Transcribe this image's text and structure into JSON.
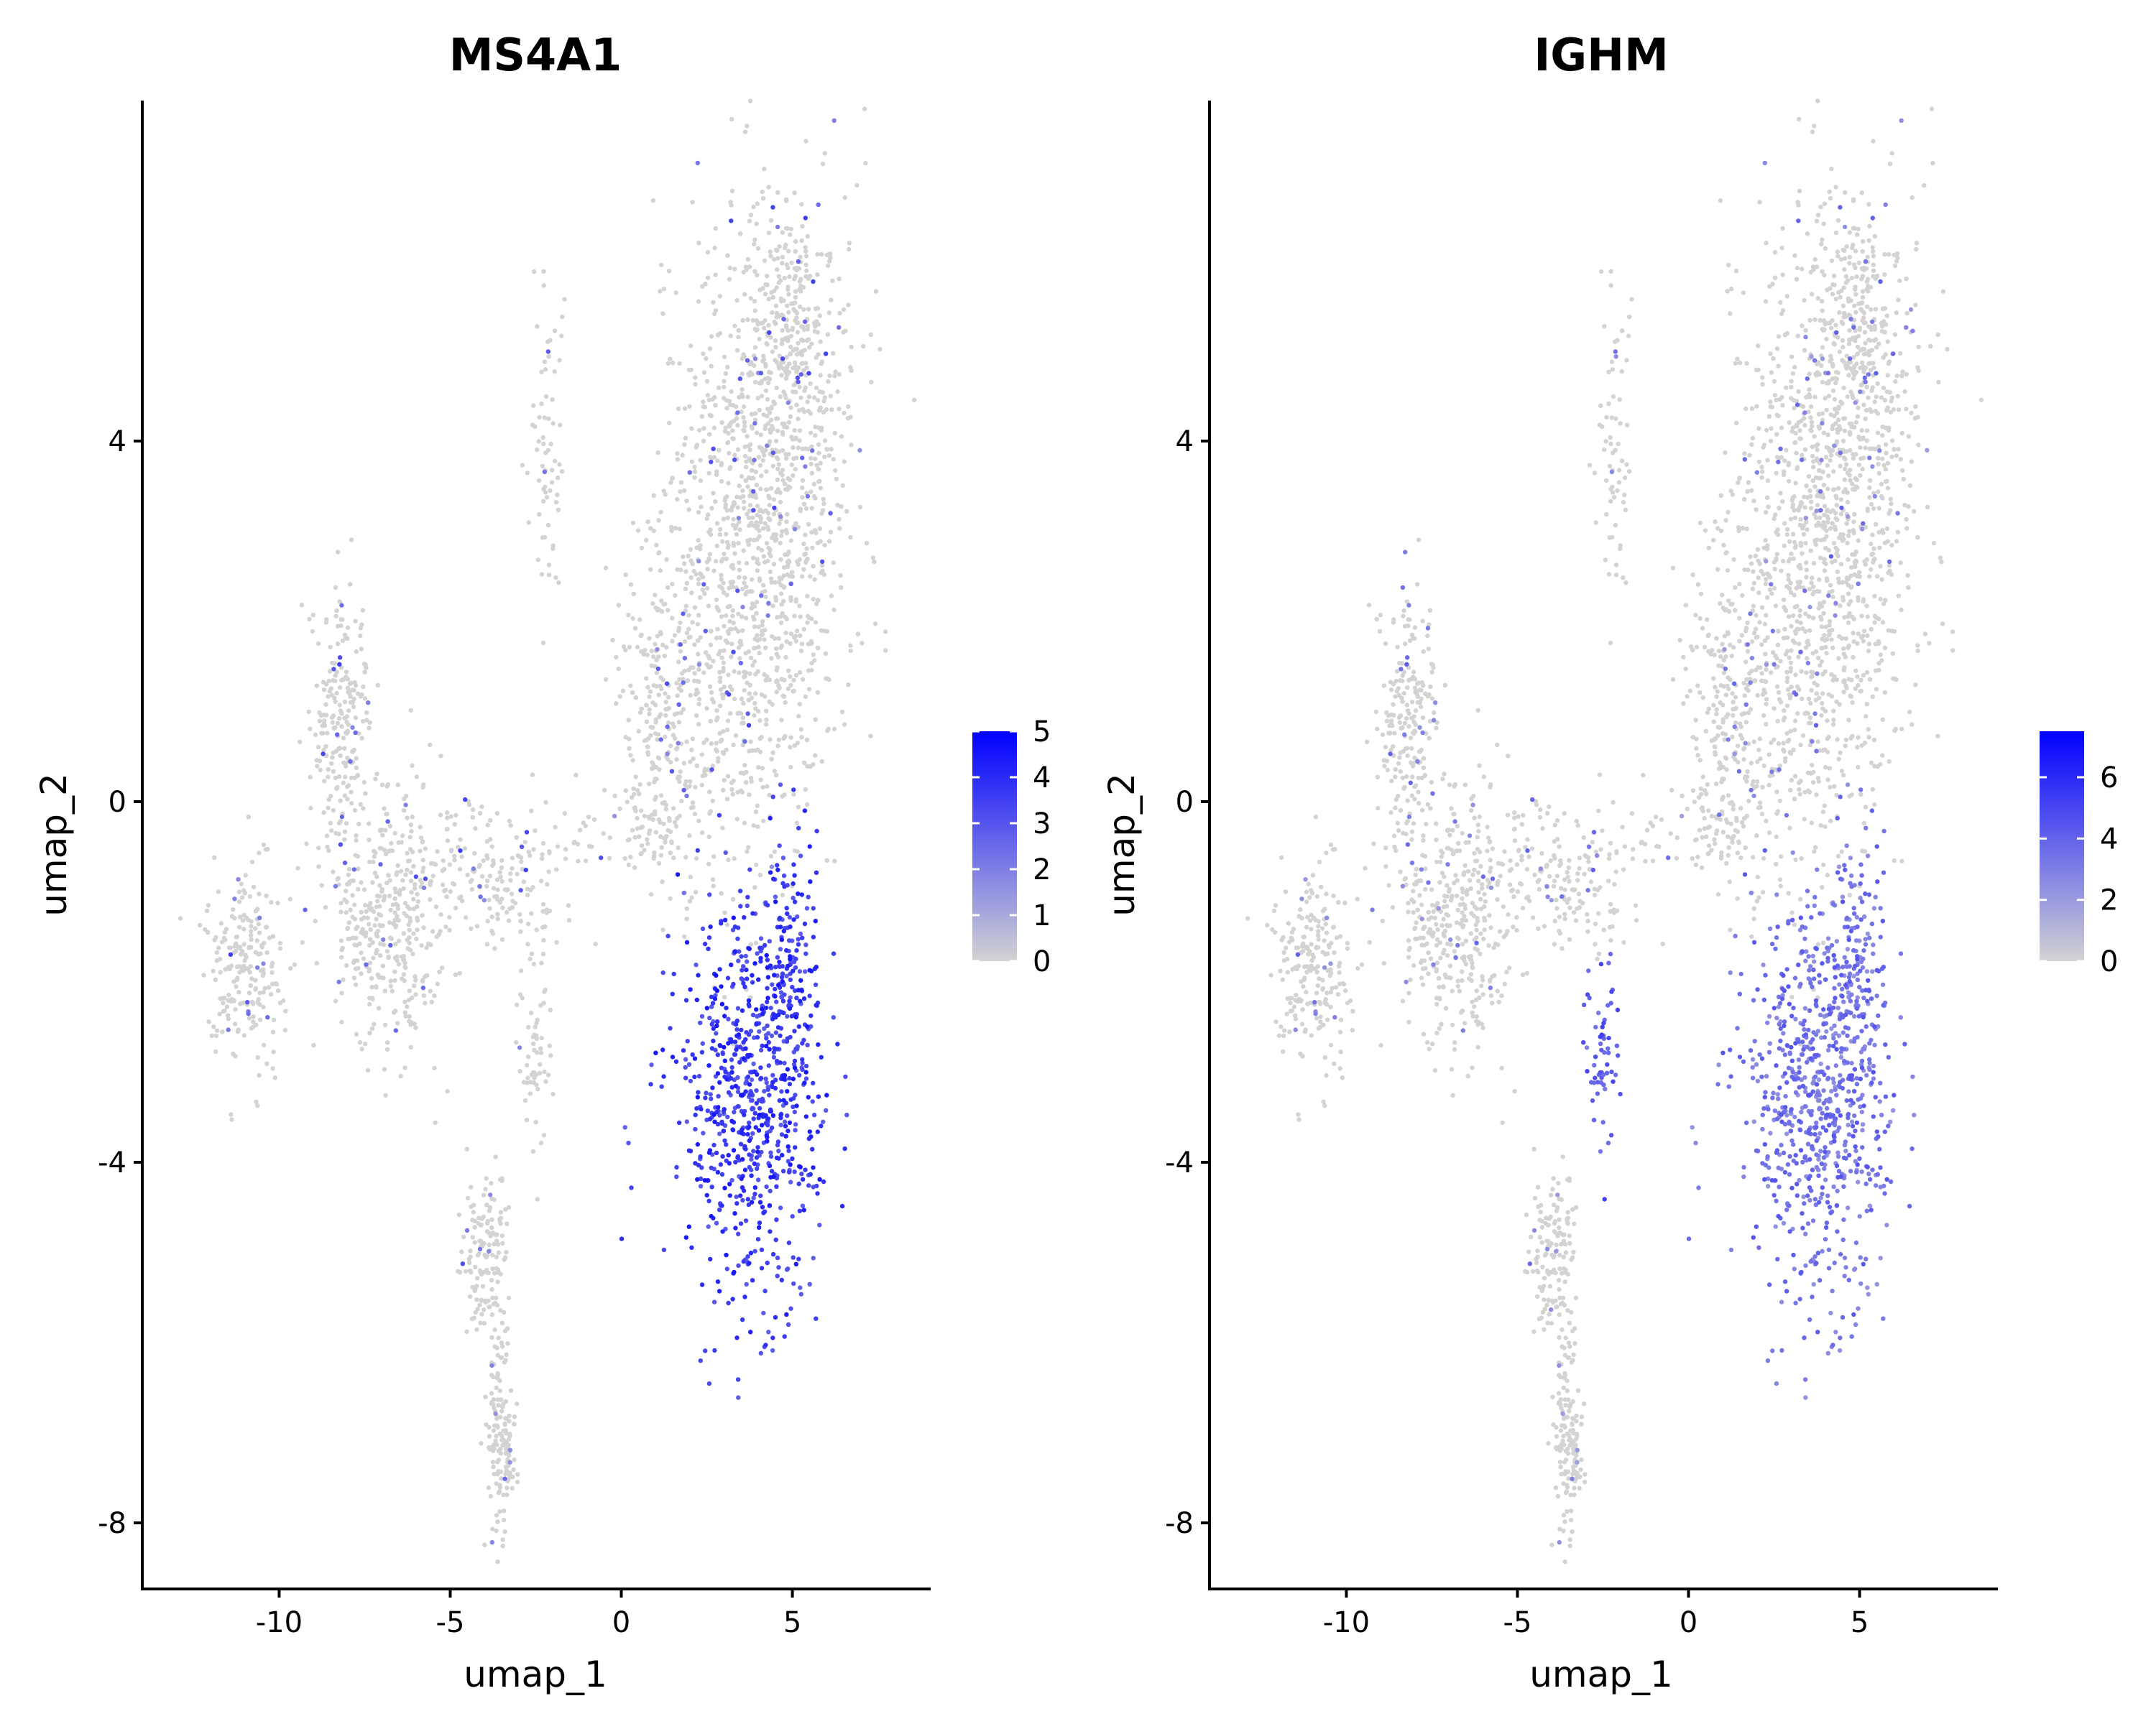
{
  "chart_data": [
    {
      "type": "scatter",
      "title": "MS4A1",
      "xlabel": "umap_1",
      "ylabel": "umap_2",
      "xlim": [
        -14,
        9
      ],
      "ylim": [
        -8.8,
        7.8
      ],
      "x_ticks": [
        "-10",
        "-5",
        "0",
        "5"
      ],
      "y_ticks": [
        "4",
        "0",
        "-4",
        "-8"
      ],
      "legend_position": "right",
      "colorbar": {
        "min": 0,
        "max": 5,
        "ticks": [
          "5",
          "4",
          "3",
          "2",
          "1",
          "0"
        ]
      },
      "colors": {
        "low": "#d3d3d3",
        "high": "#0000ff"
      },
      "expression_by_region": [
        {
          "region": "B cell cluster (x 1.5 to 6, y -5 to -0.5)",
          "expression": "high"
        },
        {
          "region": "remaining cells",
          "expression": "mostly 0, sparse low values"
        }
      ]
    },
    {
      "type": "scatter",
      "title": "IGHM",
      "xlabel": "umap_1",
      "ylabel": "umap_2",
      "xlim": [
        -14,
        9
      ],
      "ylim": [
        -8.8,
        7.8
      ],
      "x_ticks": [
        "-10",
        "-5",
        "0",
        "5"
      ],
      "y_ticks": [
        "4",
        "0",
        "-4",
        "-8"
      ],
      "legend_position": "right",
      "colorbar": {
        "min": 0,
        "max": 7.5,
        "ticks": [
          "6",
          "4",
          "2",
          "0"
        ]
      },
      "colors": {
        "low": "#d3d3d3",
        "high": "#0000ff"
      },
      "expression_by_region": [
        {
          "region": "B cell cluster (x 1.5 to 6, y -5 to -0.5)",
          "expression": "moderate"
        },
        {
          "region": "small cluster near x -2.5, y -3",
          "expression": "moderate"
        },
        {
          "region": "remaining cells",
          "expression": "mostly 0, sparse low values"
        }
      ]
    }
  ]
}
